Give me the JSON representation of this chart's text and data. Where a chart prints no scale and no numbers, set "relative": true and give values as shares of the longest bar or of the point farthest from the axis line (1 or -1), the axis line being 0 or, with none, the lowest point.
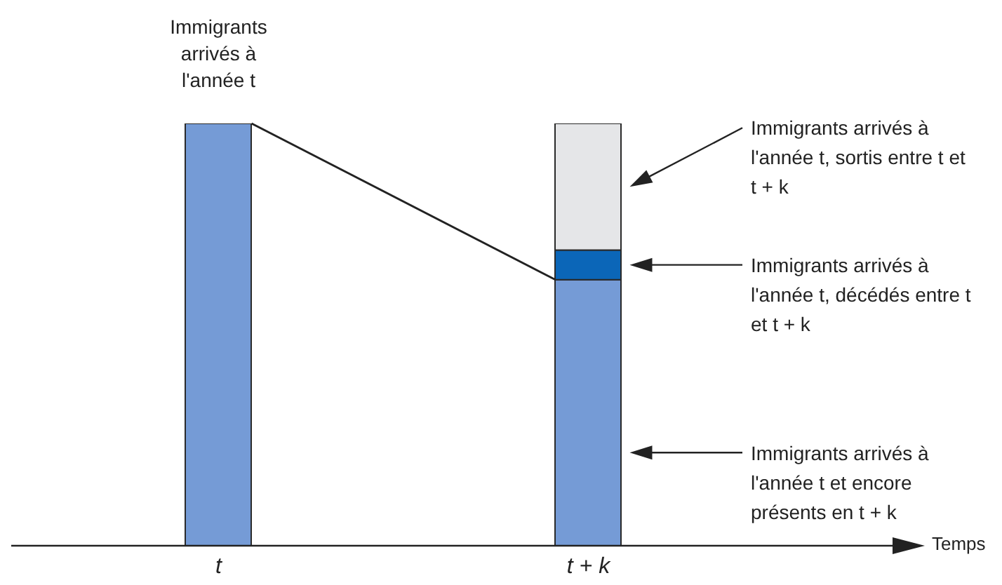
{
  "chart_data": {
    "type": "bar",
    "stacked": true,
    "relative": true,
    "xlabel": "Temps",
    "categories": [
      "t",
      "t + k"
    ],
    "series": [
      {
        "color": "#759bd6",
        "values": [
          1,
          0.63
        ]
      },
      {
        "color": "#0b66b8",
        "values": [
          null,
          0.07
        ]
      },
      {
        "color": "#e5e6e8",
        "values": [
          null,
          0.3
        ]
      }
    ],
    "annotations": [
      "Immigrants arrivés à l'année t",
      "Immigrants arrivés à l'année t, sortis entre t et t + k",
      "Immigrants arrivés à l'année t, décédés entre t et t + k",
      "Immigrants arrivés à l'année t et encore présents en t + k"
    ]
  }
}
